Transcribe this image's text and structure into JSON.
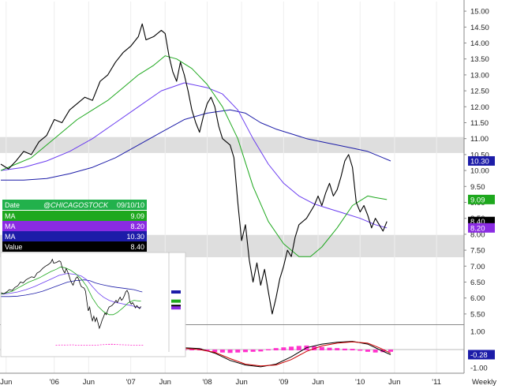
{
  "chart_data": {
    "type": "line",
    "frequency_label": "Weekly",
    "y_axis": {
      "ticks": [
        "15.00",
        "14.50",
        "14.00",
        "13.50",
        "13.00",
        "12.50",
        "12.00",
        "11.50",
        "11.00",
        "10.50",
        "10.00",
        "9.50",
        "9.00",
        "8.50",
        "8.00",
        "7.50",
        "7.00",
        "6.50",
        "6.00",
        "5.50"
      ],
      "range": [
        5.2,
        15.3
      ],
      "scale": "linear"
    },
    "x_axis": {
      "ticks": [
        "Jun",
        "'06",
        "Jun",
        "'07",
        "Jun",
        "'08",
        "Jun",
        "'09",
        "Jun",
        "'10",
        "Jun",
        "'11"
      ],
      "range": [
        2005.29,
        2011.36
      ]
    },
    "legend": {
      "date_label": "Date",
      "watermark": "@CHICAGOSTOCK",
      "date_value": "09/10/10",
      "rows": [
        {
          "label": "MA",
          "value": "9.09",
          "color": "#1ea81e"
        },
        {
          "label": "MA",
          "value": "8.20",
          "color": "#8a2be2"
        },
        {
          "label": "MA",
          "value": "10.30",
          "color": "#1c1ca8"
        },
        {
          "label": "Value",
          "value": "8.40",
          "color": "#000000"
        }
      ]
    },
    "value_tags": [
      {
        "value": 10.3,
        "text": "10.30",
        "color": "#1c1ca8"
      },
      {
        "value": 9.09,
        "text": "9.09",
        "color": "#1ea81e"
      },
      {
        "value": 8.4,
        "text": "8.40",
        "color": "#000000"
      },
      {
        "value": 8.2,
        "text": "8.20",
        "color": "#8a2be2"
      }
    ],
    "shaded_bands": [
      {
        "from": 10.55,
        "to": 11.05
      },
      {
        "from": 7.28,
        "to": 7.98
      }
    ],
    "series": [
      {
        "key": "price",
        "color": "#000000",
        "points": [
          [
            2005.3,
            10.2
          ],
          [
            2005.4,
            10.05
          ],
          [
            2005.5,
            10.3
          ],
          [
            2005.6,
            10.6
          ],
          [
            2005.7,
            10.5
          ],
          [
            2005.8,
            10.9
          ],
          [
            2005.9,
            11.1
          ],
          [
            2006.0,
            11.6
          ],
          [
            2006.1,
            11.5
          ],
          [
            2006.2,
            11.9
          ],
          [
            2006.3,
            12.1
          ],
          [
            2006.4,
            12.3
          ],
          [
            2006.5,
            12.2
          ],
          [
            2006.6,
            12.8
          ],
          [
            2006.7,
            13.0
          ],
          [
            2006.8,
            13.4
          ],
          [
            2006.9,
            13.7
          ],
          [
            2007.0,
            13.9
          ],
          [
            2007.1,
            14.2
          ],
          [
            2007.15,
            14.6
          ],
          [
            2007.2,
            14.1
          ],
          [
            2007.3,
            14.2
          ],
          [
            2007.4,
            14.4
          ],
          [
            2007.45,
            14.3
          ],
          [
            2007.5,
            13.6
          ],
          [
            2007.55,
            13.1
          ],
          [
            2007.6,
            12.8
          ],
          [
            2007.65,
            13.4
          ],
          [
            2007.7,
            13.0
          ],
          [
            2007.75,
            12.5
          ],
          [
            2007.8,
            11.9
          ],
          [
            2007.85,
            11.5
          ],
          [
            2007.9,
            11.2
          ],
          [
            2007.95,
            11.7
          ],
          [
            2008.0,
            12.1
          ],
          [
            2008.05,
            12.3
          ],
          [
            2008.1,
            12.0
          ],
          [
            2008.15,
            11.4
          ],
          [
            2008.2,
            11.0
          ],
          [
            2008.3,
            10.8
          ],
          [
            2008.35,
            10.4
          ],
          [
            2008.4,
            9.0
          ],
          [
            2008.45,
            7.8
          ],
          [
            2008.5,
            8.3
          ],
          [
            2008.55,
            7.2
          ],
          [
            2008.6,
            6.5
          ],
          [
            2008.65,
            7.1
          ],
          [
            2008.7,
            6.4
          ],
          [
            2008.75,
            6.9
          ],
          [
            2008.8,
            6.2
          ],
          [
            2008.85,
            5.5
          ],
          [
            2008.9,
            6.0
          ],
          [
            2008.95,
            6.6
          ],
          [
            2009.0,
            7.0
          ],
          [
            2009.05,
            7.5
          ],
          [
            2009.1,
            7.3
          ],
          [
            2009.15,
            7.9
          ],
          [
            2009.2,
            8.3
          ],
          [
            2009.3,
            8.5
          ],
          [
            2009.4,
            8.9
          ],
          [
            2009.45,
            9.2
          ],
          [
            2009.5,
            8.9
          ],
          [
            2009.55,
            9.3
          ],
          [
            2009.6,
            9.6
          ],
          [
            2009.65,
            9.2
          ],
          [
            2009.7,
            9.4
          ],
          [
            2009.75,
            9.8
          ],
          [
            2009.8,
            10.3
          ],
          [
            2009.85,
            10.5
          ],
          [
            2009.9,
            10.1
          ],
          [
            2009.95,
            9.0
          ],
          [
            2010.0,
            8.7
          ],
          [
            2010.05,
            8.9
          ],
          [
            2010.1,
            8.6
          ],
          [
            2010.15,
            8.2
          ],
          [
            2010.2,
            8.5
          ],
          [
            2010.25,
            8.3
          ],
          [
            2010.3,
            8.1
          ],
          [
            2010.35,
            8.4
          ]
        ]
      },
      {
        "key": "ma_green",
        "color": "#1ea81e",
        "points": [
          [
            2005.3,
            10.0
          ],
          [
            2005.5,
            10.2
          ],
          [
            2005.7,
            10.4
          ],
          [
            2005.9,
            10.8
          ],
          [
            2006.1,
            11.2
          ],
          [
            2006.3,
            11.6
          ],
          [
            2006.5,
            11.9
          ],
          [
            2006.7,
            12.2
          ],
          [
            2006.9,
            12.6
          ],
          [
            2007.1,
            13.0
          ],
          [
            2007.3,
            13.3
          ],
          [
            2007.45,
            13.6
          ],
          [
            2007.6,
            13.5
          ],
          [
            2007.8,
            13.2
          ],
          [
            2008.0,
            12.7
          ],
          [
            2008.2,
            12.0
          ],
          [
            2008.4,
            11.0
          ],
          [
            2008.6,
            9.5
          ],
          [
            2008.8,
            8.4
          ],
          [
            2009.0,
            7.7
          ],
          [
            2009.2,
            7.3
          ],
          [
            2009.35,
            7.3
          ],
          [
            2009.5,
            7.6
          ],
          [
            2009.7,
            8.2
          ],
          [
            2009.9,
            8.9
          ],
          [
            2010.1,
            9.2
          ],
          [
            2010.2,
            9.15
          ],
          [
            2010.35,
            9.09
          ]
        ]
      },
      {
        "key": "ma_purple",
        "color": "#6a3cf0",
        "points": [
          [
            2005.3,
            10.0
          ],
          [
            2005.6,
            10.1
          ],
          [
            2005.9,
            10.3
          ],
          [
            2006.2,
            10.6
          ],
          [
            2006.5,
            11.0
          ],
          [
            2006.8,
            11.5
          ],
          [
            2007.1,
            12.0
          ],
          [
            2007.4,
            12.5
          ],
          [
            2007.7,
            12.75
          ],
          [
            2008.0,
            12.6
          ],
          [
            2008.2,
            12.4
          ],
          [
            2008.4,
            11.9
          ],
          [
            2008.6,
            11.0
          ],
          [
            2008.8,
            10.2
          ],
          [
            2009.0,
            9.6
          ],
          [
            2009.2,
            9.2
          ],
          [
            2009.4,
            8.95
          ],
          [
            2009.6,
            8.8
          ],
          [
            2009.8,
            8.65
          ],
          [
            2010.0,
            8.5
          ],
          [
            2010.2,
            8.3
          ],
          [
            2010.35,
            8.2
          ]
        ]
      },
      {
        "key": "ma_blue",
        "color": "#1c1ca8",
        "points": [
          [
            2005.3,
            9.7
          ],
          [
            2005.6,
            9.7
          ],
          [
            2005.9,
            9.75
          ],
          [
            2006.2,
            9.9
          ],
          [
            2006.5,
            10.1
          ],
          [
            2006.8,
            10.4
          ],
          [
            2007.1,
            10.8
          ],
          [
            2007.4,
            11.2
          ],
          [
            2007.7,
            11.6
          ],
          [
            2008.0,
            11.8
          ],
          [
            2008.3,
            11.9
          ],
          [
            2008.5,
            11.8
          ],
          [
            2008.7,
            11.5
          ],
          [
            2008.9,
            11.3
          ],
          [
            2009.1,
            11.15
          ],
          [
            2009.3,
            11.0
          ],
          [
            2009.5,
            10.9
          ],
          [
            2009.7,
            10.8
          ],
          [
            2009.9,
            10.7
          ],
          [
            2010.1,
            10.6
          ],
          [
            2010.3,
            10.4
          ],
          [
            2010.4,
            10.3
          ]
        ]
      }
    ],
    "lower_panel": {
      "y_ticks": [
        "1.00",
        "-1.00"
      ],
      "y_range": [
        -1.3,
        1.3
      ],
      "tag": {
        "value": -0.28,
        "text": "-0.28",
        "color": "#1c1ca8"
      },
      "lines": [
        {
          "key": "line_a",
          "color": "#000000",
          "points": [
            [
              2007.3,
              0.1
            ],
            [
              2007.6,
              0.12
            ],
            [
              2007.9,
              0.05
            ],
            [
              2008.1,
              -0.2
            ],
            [
              2008.3,
              -0.6
            ],
            [
              2008.5,
              -0.85
            ],
            [
              2008.7,
              -0.95
            ],
            [
              2008.9,
              -0.8
            ],
            [
              2009.1,
              -0.4
            ],
            [
              2009.3,
              0.1
            ],
            [
              2009.5,
              0.3
            ],
            [
              2009.7,
              0.4
            ],
            [
              2009.9,
              0.45
            ],
            [
              2010.1,
              0.3
            ],
            [
              2010.25,
              0.0
            ],
            [
              2010.4,
              -0.28
            ]
          ]
        },
        {
          "key": "line_b",
          "color": "#cc0000",
          "points": [
            [
              2007.3,
              0.08
            ],
            [
              2007.6,
              0.1
            ],
            [
              2007.9,
              0.0
            ],
            [
              2008.1,
              -0.15
            ],
            [
              2008.3,
              -0.5
            ],
            [
              2008.5,
              -0.8
            ],
            [
              2008.7,
              -0.9
            ],
            [
              2008.9,
              -0.85
            ],
            [
              2009.1,
              -0.55
            ],
            [
              2009.3,
              -0.1
            ],
            [
              2009.5,
              0.2
            ],
            [
              2009.7,
              0.35
            ],
            [
              2009.9,
              0.42
            ],
            [
              2010.1,
              0.35
            ],
            [
              2010.25,
              0.1
            ],
            [
              2010.4,
              -0.2
            ]
          ]
        }
      ],
      "histogram": [
        [
          2007.3,
          0.0
        ],
        [
          2007.4,
          0.02
        ],
        [
          2007.5,
          0.03
        ],
        [
          2007.6,
          0.02
        ],
        [
          2007.7,
          0.03
        ],
        [
          2007.8,
          0.05
        ],
        [
          2007.9,
          0.06
        ],
        [
          2008.0,
          -0.05
        ],
        [
          2008.1,
          -0.1
        ],
        [
          2008.2,
          -0.12
        ],
        [
          2008.3,
          -0.14
        ],
        [
          2008.4,
          -0.12
        ],
        [
          2008.5,
          -0.1
        ],
        [
          2008.6,
          -0.08
        ],
        [
          2008.7,
          -0.06
        ],
        [
          2008.8,
          0.02
        ],
        [
          2008.9,
          0.08
        ],
        [
          2009.0,
          0.12
        ],
        [
          2009.1,
          0.16
        ],
        [
          2009.2,
          0.2
        ],
        [
          2009.3,
          0.22
        ],
        [
          2009.4,
          0.18
        ],
        [
          2009.5,
          0.14
        ],
        [
          2009.6,
          0.1
        ],
        [
          2009.7,
          0.08
        ],
        [
          2009.8,
          0.05
        ],
        [
          2009.9,
          0.04
        ],
        [
          2010.0,
          -0.02
        ],
        [
          2010.1,
          -0.08
        ],
        [
          2010.2,
          -0.12
        ],
        [
          2010.3,
          -0.1
        ],
        [
          2010.4,
          -0.08
        ]
      ]
    }
  }
}
